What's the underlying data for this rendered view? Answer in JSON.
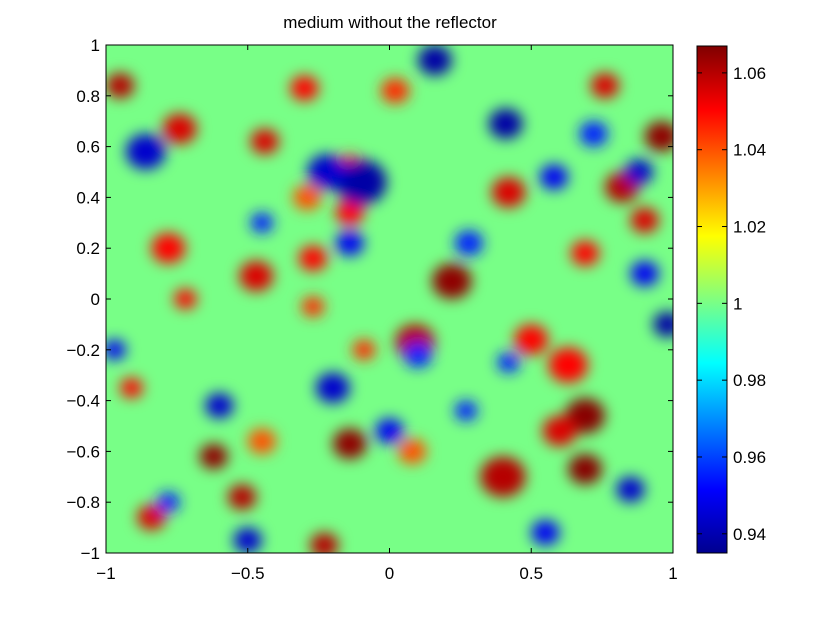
{
  "chart_data": {
    "type": "heatmap",
    "title": "medium without the reflector",
    "xlabel": "",
    "ylabel": "",
    "xlim": [
      -1,
      1
    ],
    "ylim": [
      -1,
      1
    ],
    "x_ticks": [
      -1,
      -0.5,
      0,
      0.5,
      1
    ],
    "x_tick_labels": [
      "−1",
      "−0.5",
      "0",
      "0.5",
      "1"
    ],
    "y_ticks": [
      1,
      0.8,
      0.6,
      0.4,
      0.2,
      0,
      -0.2,
      -0.4,
      -0.6,
      -0.8,
      -1
    ],
    "y_tick_labels": [
      "1",
      "0.8",
      "0.6",
      "0.4",
      "0.2",
      "0",
      "−0.2",
      "−0.4",
      "−0.6",
      "−0.8",
      "−1"
    ],
    "colormap": "jet",
    "colorbar": {
      "clim": [
        0.935,
        1.067
      ],
      "ticks": [
        1.06,
        1.04,
        1.02,
        1,
        0.98,
        0.96,
        0.94
      ],
      "tick_labels": [
        "1.06",
        "1.04",
        "1.02",
        "1",
        "0.98",
        "0.96",
        "0.94"
      ]
    },
    "background_value": 1.0,
    "features": [
      {
        "x": 0.22,
        "y": 0.07,
        "value": 1.065,
        "r": 0.07
      },
      {
        "x": 0.09,
        "y": -0.17,
        "value": 1.06,
        "r": 0.07
      },
      {
        "x": 0.69,
        "y": -0.46,
        "value": 1.066,
        "r": 0.07
      },
      {
        "x": 0.69,
        "y": -0.67,
        "value": 1.066,
        "r": 0.06
      },
      {
        "x": 0.4,
        "y": -0.7,
        "value": 1.06,
        "r": 0.08
      },
      {
        "x": 0.6,
        "y": -0.52,
        "value": 1.055,
        "r": 0.06
      },
      {
        "x": 0.63,
        "y": -0.26,
        "value": 1.05,
        "r": 0.07
      },
      {
        "x": 0.5,
        "y": -0.16,
        "value": 1.05,
        "r": 0.06
      },
      {
        "x": 0.96,
        "y": 0.64,
        "value": 1.065,
        "r": 0.06
      },
      {
        "x": 0.82,
        "y": 0.44,
        "value": 1.06,
        "r": 0.06
      },
      {
        "x": 0.9,
        "y": 0.31,
        "value": 1.055,
        "r": 0.05
      },
      {
        "x": 0.69,
        "y": 0.18,
        "value": 1.05,
        "r": 0.05
      },
      {
        "x": 0.42,
        "y": 0.42,
        "value": 1.055,
        "r": 0.06
      },
      {
        "x": -0.09,
        "y": -0.2,
        "value": 1.045,
        "r": 0.04
      },
      {
        "x": -0.14,
        "y": -0.57,
        "value": 1.065,
        "r": 0.06
      },
      {
        "x": -0.62,
        "y": -0.62,
        "value": 1.065,
        "r": 0.05
      },
      {
        "x": -0.52,
        "y": -0.78,
        "value": 1.06,
        "r": 0.05
      },
      {
        "x": -0.84,
        "y": -0.86,
        "value": 1.055,
        "r": 0.05
      },
      {
        "x": -0.72,
        "y": 0.0,
        "value": 1.05,
        "r": 0.04
      },
      {
        "x": -0.47,
        "y": 0.09,
        "value": 1.055,
        "r": 0.06
      },
      {
        "x": -0.27,
        "y": 0.16,
        "value": 1.05,
        "r": 0.05
      },
      {
        "x": -0.74,
        "y": 0.67,
        "value": 1.055,
        "r": 0.06
      },
      {
        "x": -0.95,
        "y": 0.84,
        "value": 1.06,
        "r": 0.05
      },
      {
        "x": -0.44,
        "y": 0.62,
        "value": 1.055,
        "r": 0.05
      },
      {
        "x": -0.78,
        "y": 0.2,
        "value": 1.05,
        "r": 0.06
      },
      {
        "x": -0.14,
        "y": 0.34,
        "value": 1.05,
        "r": 0.05
      },
      {
        "x": -0.23,
        "y": -0.97,
        "value": 1.06,
        "r": 0.05
      },
      {
        "x": -0.91,
        "y": -0.35,
        "value": 1.05,
        "r": 0.04
      },
      {
        "x": 0.76,
        "y": 0.84,
        "value": 1.055,
        "r": 0.05
      },
      {
        "x": -0.3,
        "y": 0.83,
        "value": 1.05,
        "r": 0.05
      },
      {
        "x": -0.27,
        "y": -0.03,
        "value": 1.045,
        "r": 0.04
      },
      {
        "x": -0.45,
        "y": -0.56,
        "value": 1.04,
        "r": 0.05
      },
      {
        "x": 0.02,
        "y": 0.82,
        "value": 1.045,
        "r": 0.05
      },
      {
        "x": -0.14,
        "y": 0.52,
        "value": 1.045,
        "r": 0.05
      },
      {
        "x": 0.08,
        "y": -0.6,
        "value": 1.04,
        "r": 0.05
      },
      {
        "x": -0.29,
        "y": 0.4,
        "value": 1.04,
        "r": 0.05
      },
      {
        "x": -0.1,
        "y": 0.46,
        "value": 0.94,
        "r": 0.09
      },
      {
        "x": -0.22,
        "y": 0.5,
        "value": 0.945,
        "r": 0.07
      },
      {
        "x": 0.16,
        "y": 0.94,
        "value": 0.94,
        "r": 0.06
      },
      {
        "x": 0.41,
        "y": 0.69,
        "value": 0.94,
        "r": 0.06
      },
      {
        "x": -0.86,
        "y": 0.58,
        "value": 0.945,
        "r": 0.07
      },
      {
        "x": -0.14,
        "y": 0.22,
        "value": 0.95,
        "r": 0.05
      },
      {
        "x": 0.1,
        "y": -0.22,
        "value": 0.955,
        "r": 0.05
      },
      {
        "x": -0.2,
        "y": -0.35,
        "value": 0.945,
        "r": 0.06
      },
      {
        "x": -0.6,
        "y": -0.42,
        "value": 0.945,
        "r": 0.05
      },
      {
        "x": 0.0,
        "y": -0.52,
        "value": 0.95,
        "r": 0.05
      },
      {
        "x": 0.58,
        "y": 0.48,
        "value": 0.95,
        "r": 0.05
      },
      {
        "x": 0.88,
        "y": 0.5,
        "value": 0.945,
        "r": 0.05
      },
      {
        "x": 0.9,
        "y": 0.1,
        "value": 0.95,
        "r": 0.05
      },
      {
        "x": 0.85,
        "y": -0.75,
        "value": 0.945,
        "r": 0.05
      },
      {
        "x": 0.98,
        "y": -0.1,
        "value": 0.94,
        "r": 0.05
      },
      {
        "x": -0.5,
        "y": -0.95,
        "value": 0.945,
        "r": 0.05
      },
      {
        "x": 0.55,
        "y": -0.92,
        "value": 0.95,
        "r": 0.05
      },
      {
        "x": 0.28,
        "y": 0.22,
        "value": 0.955,
        "r": 0.05
      },
      {
        "x": -0.45,
        "y": 0.3,
        "value": 0.955,
        "r": 0.04
      },
      {
        "x": -0.97,
        "y": -0.2,
        "value": 0.95,
        "r": 0.04
      },
      {
        "x": 0.27,
        "y": -0.44,
        "value": 0.955,
        "r": 0.04
      },
      {
        "x": 0.42,
        "y": -0.25,
        "value": 0.955,
        "r": 0.04
      },
      {
        "x": -0.78,
        "y": -0.8,
        "value": 0.955,
        "r": 0.04
      },
      {
        "x": 0.72,
        "y": 0.65,
        "value": 0.955,
        "r": 0.05
      }
    ]
  }
}
